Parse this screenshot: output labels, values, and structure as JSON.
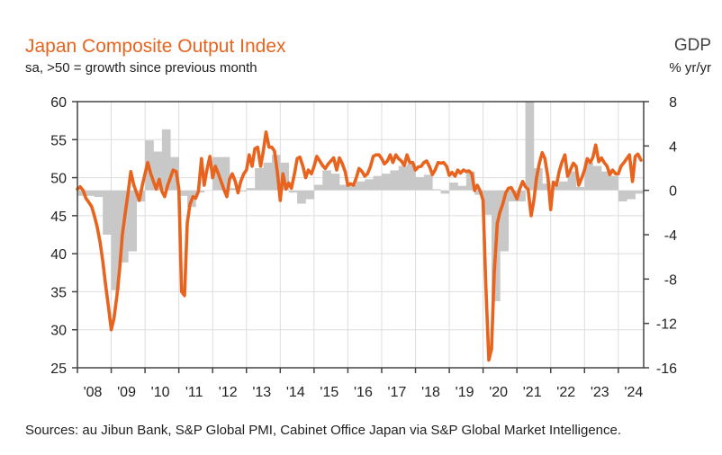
{
  "chart_data": {
    "type": "line+bar",
    "title": "Japan Composite Output Index",
    "subtitle": "sa, >50 = growth since previous month",
    "right_axis_title": "GDP",
    "right_axis_subtitle": "% yr/yr",
    "source": "Sources: au Jibun Bank, S&P Global PMI, Cabinet Office Japan via S&P Global Market Intelligence.",
    "left_axis": {
      "min": 25,
      "max": 60,
      "ticks": [
        60,
        55,
        50,
        45,
        40,
        35,
        30,
        25
      ]
    },
    "right_axis": {
      "min": -16,
      "max": 8,
      "ticks": [
        8,
        4,
        0,
        -4,
        -8,
        -12,
        -16
      ]
    },
    "x_range": [
      2008.0,
      2024.75
    ],
    "x_tick_labels": [
      "'08",
      "'09",
      "'10",
      "'11",
      "'12",
      "'13",
      "'14",
      "'15",
      "'16",
      "'17",
      "'18",
      "'19",
      "'20",
      "'21",
      "'22",
      "'23",
      "'24"
    ],
    "series": [
      {
        "name": "Japan Composite Output Index",
        "axis": "left",
        "color": "#E8641E",
        "points": [
          [
            2008.0,
            48.5
          ],
          [
            2008.08,
            48.8
          ],
          [
            2008.17,
            48.3
          ],
          [
            2008.25,
            47.3
          ],
          [
            2008.33,
            46.8
          ],
          [
            2008.42,
            46.2
          ],
          [
            2008.5,
            45.0
          ],
          [
            2008.58,
            43.6
          ],
          [
            2008.67,
            41.5
          ],
          [
            2008.75,
            39.0
          ],
          [
            2008.83,
            36.0
          ],
          [
            2008.92,
            33.0
          ],
          [
            2009.0,
            30.0
          ],
          [
            2009.08,
            31.5
          ],
          [
            2009.17,
            34.5
          ],
          [
            2009.25,
            38.0
          ],
          [
            2009.33,
            42.5
          ],
          [
            2009.42,
            45.5
          ],
          [
            2009.5,
            48.0
          ],
          [
            2009.58,
            50.8
          ],
          [
            2009.67,
            49.0
          ],
          [
            2009.75,
            48.0
          ],
          [
            2009.83,
            47.0
          ],
          [
            2009.92,
            49.0
          ],
          [
            2010.0,
            50.5
          ],
          [
            2010.08,
            52.0
          ],
          [
            2010.17,
            50.5
          ],
          [
            2010.25,
            49.5
          ],
          [
            2010.33,
            48.5
          ],
          [
            2010.42,
            49.8
          ],
          [
            2010.5,
            48.2
          ],
          [
            2010.58,
            47.5
          ],
          [
            2010.67,
            49.0
          ],
          [
            2010.75,
            50.0
          ],
          [
            2010.83,
            51.0
          ],
          [
            2010.92,
            50.8
          ],
          [
            2011.0,
            48.5
          ],
          [
            2011.08,
            35.0
          ],
          [
            2011.17,
            34.5
          ],
          [
            2011.25,
            44.0
          ],
          [
            2011.33,
            46.5
          ],
          [
            2011.42,
            47.5
          ],
          [
            2011.5,
            47.3
          ],
          [
            2011.58,
            48.2
          ],
          [
            2011.67,
            52.5
          ],
          [
            2011.75,
            49.0
          ],
          [
            2011.83,
            51.0
          ],
          [
            2011.92,
            52.8
          ],
          [
            2012.0,
            50.0
          ],
          [
            2012.08,
            51.5
          ],
          [
            2012.17,
            50.5
          ],
          [
            2012.25,
            49.5
          ],
          [
            2012.33,
            48.5
          ],
          [
            2012.42,
            47.5
          ],
          [
            2012.5,
            49.8
          ],
          [
            2012.58,
            50.5
          ],
          [
            2012.67,
            49.5
          ],
          [
            2012.75,
            48.0
          ],
          [
            2012.83,
            49.5
          ],
          [
            2012.92,
            50.5
          ],
          [
            2013.0,
            51.0
          ],
          [
            2013.08,
            53.0
          ],
          [
            2013.17,
            51.5
          ],
          [
            2013.25,
            53.8
          ],
          [
            2013.33,
            54.0
          ],
          [
            2013.42,
            51.5
          ],
          [
            2013.5,
            53.5
          ],
          [
            2013.58,
            56.0
          ],
          [
            2013.67,
            54.0
          ],
          [
            2013.75,
            54.0
          ],
          [
            2013.83,
            53.5
          ],
          [
            2013.92,
            50.5
          ],
          [
            2014.0,
            47.0
          ],
          [
            2014.08,
            50.5
          ],
          [
            2014.17,
            48.5
          ],
          [
            2014.25,
            49.3
          ],
          [
            2014.33,
            48.6
          ],
          [
            2014.42,
            50.5
          ],
          [
            2014.5,
            52.5
          ],
          [
            2014.58,
            52.7
          ],
          [
            2014.67,
            51.5
          ],
          [
            2014.75,
            50.0
          ],
          [
            2014.83,
            51.0
          ],
          [
            2014.92,
            50.5
          ],
          [
            2015.0,
            51.5
          ],
          [
            2015.08,
            52.8
          ],
          [
            2015.17,
            52.2
          ],
          [
            2015.25,
            51.6
          ],
          [
            2015.33,
            51.2
          ],
          [
            2015.42,
            51.8
          ],
          [
            2015.5,
            52.2
          ],
          [
            2015.58,
            52.6
          ],
          [
            2015.67,
            51.0
          ],
          [
            2015.75,
            52.6
          ],
          [
            2015.83,
            51.9
          ],
          [
            2015.92,
            50.8
          ],
          [
            2016.0,
            49.0
          ],
          [
            2016.08,
            49.2
          ],
          [
            2016.17,
            49.0
          ],
          [
            2016.25,
            50.0
          ],
          [
            2016.33,
            51.2
          ],
          [
            2016.42,
            50.8
          ],
          [
            2016.5,
            50.2
          ],
          [
            2016.58,
            50.5
          ],
          [
            2016.67,
            51.5
          ],
          [
            2016.75,
            52.8
          ],
          [
            2016.83,
            53.0
          ],
          [
            2016.92,
            53.0
          ],
          [
            2017.0,
            52.5
          ],
          [
            2017.08,
            51.8
          ],
          [
            2017.17,
            52.2
          ],
          [
            2017.25,
            53.0
          ],
          [
            2017.33,
            52.0
          ],
          [
            2017.42,
            53.0
          ],
          [
            2017.5,
            52.5
          ],
          [
            2017.58,
            52.2
          ],
          [
            2017.67,
            51.6
          ],
          [
            2017.75,
            53.0
          ],
          [
            2017.83,
            52.0
          ],
          [
            2017.92,
            52.0
          ],
          [
            2018.0,
            51.0
          ],
          [
            2018.08,
            51.4
          ],
          [
            2018.17,
            51.5
          ],
          [
            2018.25,
            52.0
          ],
          [
            2018.33,
            52.2
          ],
          [
            2018.42,
            51.4
          ],
          [
            2018.5,
            50.4
          ],
          [
            2018.58,
            51.0
          ],
          [
            2018.67,
            52.0
          ],
          [
            2018.75,
            51.9
          ],
          [
            2018.83,
            52.0
          ],
          [
            2018.92,
            51.5
          ],
          [
            2019.0,
            50.3
          ],
          [
            2019.08,
            50.7
          ],
          [
            2019.17,
            50.2
          ],
          [
            2019.25,
            51.0
          ],
          [
            2019.33,
            50.6
          ],
          [
            2019.42,
            51.0
          ],
          [
            2019.5,
            50.8
          ],
          [
            2019.58,
            50.9
          ],
          [
            2019.67,
            50.5
          ],
          [
            2019.75,
            48.3
          ],
          [
            2019.83,
            49.0
          ],
          [
            2019.92,
            48.2
          ],
          [
            2020.0,
            47.0
          ],
          [
            2020.08,
            36.0
          ],
          [
            2020.17,
            26.0
          ],
          [
            2020.25,
            27.5
          ],
          [
            2020.33,
            37.5
          ],
          [
            2020.42,
            44.0
          ],
          [
            2020.5,
            45.5
          ],
          [
            2020.58,
            46.5
          ],
          [
            2020.67,
            48.0
          ],
          [
            2020.75,
            48.6
          ],
          [
            2020.83,
            48.7
          ],
          [
            2020.92,
            48.0
          ],
          [
            2021.0,
            47.2
          ],
          [
            2021.08,
            48.5
          ],
          [
            2021.17,
            49.5
          ],
          [
            2021.25,
            48.8
          ],
          [
            2021.33,
            48.5
          ],
          [
            2021.42,
            45.0
          ],
          [
            2021.5,
            47.0
          ],
          [
            2021.58,
            50.0
          ],
          [
            2021.67,
            52.0
          ],
          [
            2021.75,
            53.3
          ],
          [
            2021.83,
            52.5
          ],
          [
            2021.92,
            50.0
          ],
          [
            2022.0,
            45.8
          ],
          [
            2022.08,
            49.4
          ],
          [
            2022.17,
            49.0
          ],
          [
            2022.25,
            50.8
          ],
          [
            2022.33,
            52.0
          ],
          [
            2022.42,
            53.0
          ],
          [
            2022.5,
            50.2
          ],
          [
            2022.58,
            51.0
          ],
          [
            2022.67,
            51.9
          ],
          [
            2022.75,
            51.5
          ],
          [
            2022.83,
            49.0
          ],
          [
            2022.92,
            50.0
          ],
          [
            2023.0,
            51.0
          ],
          [
            2023.08,
            52.5
          ],
          [
            2023.17,
            52.0
          ],
          [
            2023.25,
            52.7
          ],
          [
            2023.33,
            54.3
          ],
          [
            2023.42,
            52.1
          ],
          [
            2023.5,
            52.6
          ],
          [
            2023.58,
            52.0
          ],
          [
            2023.67,
            51.5
          ],
          [
            2023.75,
            50.4
          ],
          [
            2023.83,
            51.0
          ],
          [
            2023.92,
            50.5
          ],
          [
            2024.0,
            50.5
          ],
          [
            2024.08,
            51.5
          ],
          [
            2024.17,
            52.0
          ],
          [
            2024.25,
            52.5
          ],
          [
            2024.33,
            53.0
          ],
          [
            2024.42,
            49.5
          ],
          [
            2024.5,
            52.8
          ],
          [
            2024.58,
            53.1
          ],
          [
            2024.67,
            52.3
          ]
        ]
      },
      {
        "name": "GDP",
        "axis": "right",
        "color": "#C8C8C8",
        "points": [
          [
            2008.0,
            -0.5
          ],
          [
            2008.25,
            -0.5
          ],
          [
            2008.5,
            -0.6
          ],
          [
            2008.75,
            -4.0
          ],
          [
            2009.0,
            -9.0
          ],
          [
            2009.25,
            -6.5
          ],
          [
            2009.5,
            -5.5
          ],
          [
            2009.75,
            -1.0
          ],
          [
            2010.0,
            4.5
          ],
          [
            2010.25,
            3.5
          ],
          [
            2010.5,
            5.5
          ],
          [
            2010.75,
            3.0
          ],
          [
            2011.0,
            -0.5
          ],
          [
            2011.25,
            -1.5
          ],
          [
            2011.5,
            -0.2
          ],
          [
            2011.75,
            0.0
          ],
          [
            2012.0,
            3.0
          ],
          [
            2012.25,
            3.0
          ],
          [
            2012.5,
            0.2
          ],
          [
            2012.75,
            -0.1
          ],
          [
            2013.0,
            0.2
          ],
          [
            2013.25,
            2.0
          ],
          [
            2013.5,
            2.5
          ],
          [
            2013.75,
            3.2
          ],
          [
            2014.0,
            2.5
          ],
          [
            2014.25,
            -0.2
          ],
          [
            2014.5,
            -1.2
          ],
          [
            2014.75,
            -0.8
          ],
          [
            2015.0,
            0.5
          ],
          [
            2015.25,
            1.8
          ],
          [
            2015.5,
            1.5
          ],
          [
            2015.75,
            0.5
          ],
          [
            2016.0,
            0.5
          ],
          [
            2016.25,
            0.8
          ],
          [
            2016.5,
            1.0
          ],
          [
            2016.75,
            1.3
          ],
          [
            2017.0,
            1.5
          ],
          [
            2017.25,
            1.8
          ],
          [
            2017.5,
            2.2
          ],
          [
            2017.75,
            2.4
          ],
          [
            2018.0,
            1.2
          ],
          [
            2018.25,
            1.4
          ],
          [
            2018.5,
            0.1
          ],
          [
            2018.75,
            -0.3
          ],
          [
            2019.0,
            0.7
          ],
          [
            2019.25,
            0.4
          ],
          [
            2019.5,
            1.7
          ],
          [
            2019.75,
            -0.4
          ],
          [
            2020.0,
            -2.2
          ],
          [
            2020.25,
            -10.0
          ],
          [
            2020.5,
            -5.5
          ],
          [
            2020.75,
            -1.0
          ],
          [
            2021.0,
            -1.0
          ],
          [
            2021.25,
            8.0
          ],
          [
            2021.5,
            2.0
          ],
          [
            2021.75,
            0.6
          ],
          [
            2022.0,
            0.5
          ],
          [
            2022.25,
            0.8
          ],
          [
            2022.5,
            1.7
          ],
          [
            2022.75,
            0.3
          ],
          [
            2023.0,
            2.5
          ],
          [
            2023.25,
            2.2
          ],
          [
            2023.5,
            1.7
          ],
          [
            2023.75,
            1.3
          ],
          [
            2024.0,
            -1.0
          ],
          [
            2024.25,
            -0.8
          ],
          [
            2024.5,
            -0.3
          ]
        ]
      }
    ]
  }
}
